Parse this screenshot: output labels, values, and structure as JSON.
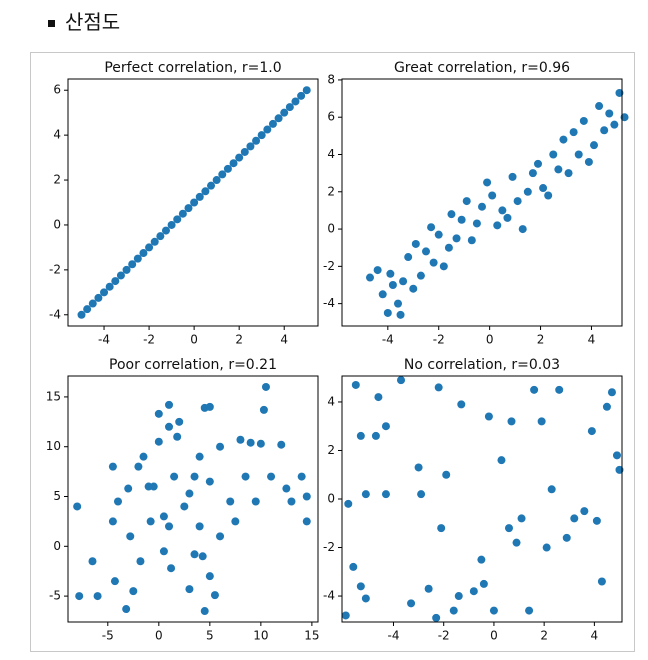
{
  "heading": "산점도",
  "chart_data": [
    {
      "type": "scatter",
      "title": "Perfect correlation, r=1.0",
      "color": "#1f77b4",
      "x": [
        -5,
        -4.75,
        -4.5,
        -4.25,
        -4,
        -3.75,
        -3.5,
        -3.25,
        -3,
        -2.75,
        -2.5,
        -2.25,
        -2,
        -1.75,
        -1.5,
        -1.25,
        -1,
        -0.75,
        -0.5,
        -0.25,
        0,
        0.25,
        0.5,
        0.75,
        1,
        1.25,
        1.5,
        1.75,
        2,
        2.25,
        2.5,
        2.75,
        3,
        3.25,
        3.5,
        3.75,
        4,
        4.25,
        4.5,
        4.75,
        5
      ],
      "y": [
        -4,
        -3.75,
        -3.5,
        -3.25,
        -3,
        -2.75,
        -2.5,
        -2.25,
        -2,
        -1.75,
        -1.5,
        -1.25,
        -1,
        -0.75,
        -0.5,
        -0.25,
        0,
        0.25,
        0.5,
        0.75,
        1,
        1.25,
        1.5,
        1.75,
        2,
        2.25,
        2.5,
        2.75,
        3,
        3.25,
        3.5,
        3.75,
        4,
        4.25,
        4.5,
        4.75,
        5,
        5.25,
        5.5,
        5.75,
        6
      ],
      "xlim": [
        -5.6,
        5.5
      ],
      "ylim": [
        -4.5,
        6.5
      ],
      "xticks": [
        -4,
        -2,
        0,
        2,
        4
      ],
      "yticks": [
        -4,
        -2,
        0,
        2,
        4,
        6
      ]
    },
    {
      "type": "scatter",
      "title": "Great correlation, r=0.96",
      "color": "#1f77b4",
      "x": [
        -4.7,
        -4.4,
        -4.2,
        -4.0,
        -3.9,
        -3.8,
        -3.6,
        -3.5,
        -3.4,
        -3.2,
        -3.0,
        -2.9,
        -2.7,
        -2.5,
        -2.3,
        -2.2,
        -2.0,
        -1.8,
        -1.6,
        -1.5,
        -1.3,
        -1.1,
        -0.9,
        -0.7,
        -0.5,
        -0.3,
        -0.1,
        0.1,
        0.3,
        0.5,
        0.7,
        0.9,
        1.1,
        1.3,
        1.5,
        1.7,
        1.9,
        2.1,
        2.3,
        2.5,
        2.7,
        2.9,
        3.1,
        3.3,
        3.5,
        3.7,
        3.9,
        4.1,
        4.3,
        4.5,
        4.7,
        4.9,
        5.1,
        5.3
      ],
      "y": [
        -2.6,
        -2.2,
        -3.5,
        -4.5,
        -2.4,
        -3.0,
        -4.0,
        -4.6,
        -2.8,
        -1.5,
        -3.2,
        -0.8,
        -2.5,
        -1.2,
        0.1,
        -1.8,
        -0.3,
        -2.0,
        -1.0,
        0.8,
        -0.5,
        0.5,
        1.5,
        -0.6,
        0.3,
        1.2,
        2.5,
        1.8,
        0.2,
        1.0,
        0.6,
        2.8,
        1.5,
        0.0,
        2.0,
        3.0,
        3.5,
        2.2,
        1.8,
        4.0,
        3.2,
        4.8,
        3.0,
        5.2,
        4.0,
        5.8,
        3.6,
        4.5,
        6.6,
        5.3,
        6.2,
        5.6,
        7.3,
        6.0
      ],
      "xlim": [
        -5.8,
        5.2
      ],
      "ylim": [
        -5.2,
        8.05
      ],
      "xticks": [
        -4,
        -2,
        0,
        2,
        4
      ],
      "yticks": [
        -4,
        -2,
        0,
        2,
        4,
        6,
        8
      ]
    },
    {
      "type": "scatter",
      "title": "Poor correlation, r=0.21",
      "color": "#1f77b4",
      "x": [
        -8,
        -7.8,
        -6.5,
        -6,
        -4.5,
        -4.3,
        -4,
        -4.5,
        -3.2,
        -3,
        -2.8,
        -2.5,
        -2,
        -1.8,
        -1.5,
        -1,
        -0.8,
        -0.5,
        0,
        0,
        0.5,
        0.5,
        1,
        1,
        1,
        1.2,
        1.5,
        1.8,
        2,
        2.5,
        3,
        3,
        3.5,
        3.5,
        4,
        4,
        4.3,
        4.5,
        4.5,
        5,
        5,
        5,
        5.5,
        6,
        6,
        7,
        7.5,
        8,
        8.5,
        9,
        9.5,
        10,
        10.3,
        10.5,
        11,
        12,
        12.5,
        13,
        14,
        14.5,
        14.5
      ],
      "y": [
        4,
        -5,
        -1.5,
        -5,
        8,
        -3.5,
        4.5,
        2.5,
        -6.3,
        5.8,
        1,
        -4.5,
        8,
        -1.5,
        9,
        6,
        2.5,
        6,
        13.3,
        10.5,
        3,
        -0.5,
        14.2,
        12,
        2,
        -2.2,
        7,
        11,
        12.5,
        4,
        5.3,
        -4.3,
        7,
        -0.8,
        9,
        2,
        -1,
        13.9,
        -6.5,
        14,
        6.5,
        -3,
        -4.9,
        10,
        1,
        4.5,
        2.5,
        10.7,
        7,
        10.4,
        4.5,
        10.3,
        13.7,
        16,
        7,
        10.2,
        5.8,
        4.5,
        7,
        2.5,
        5
      ],
      "xlim": [
        -8.9,
        15.6
      ],
      "ylim": [
        -7.6,
        17.1
      ],
      "xticks": [
        -5,
        0,
        5,
        10,
        15
      ],
      "yticks": [
        -5,
        0,
        5,
        10,
        15
      ]
    },
    {
      "type": "scatter",
      "title": "No correlation, r=0.03",
      "color": "#1f77b4",
      "x": [
        -5.9,
        -5.8,
        -5.5,
        -5.6,
        -5.3,
        -5.3,
        -5.1,
        -5.1,
        -4.6,
        -4.7,
        -4.3,
        -4.3,
        -3.7,
        -3.3,
        -3.0,
        -2.9,
        -2.6,
        -2.3,
        -2.2,
        -2.1,
        -1.9,
        -1.6,
        -1.4,
        -1.3,
        -0.8,
        -0.5,
        -0.4,
        -0.2,
        0.0,
        0.3,
        0.6,
        0.7,
        0.9,
        1.1,
        1.4,
        1.6,
        1.9,
        2.1,
        2.3,
        2.6,
        2.9,
        3.2,
        3.6,
        3.9,
        4.1,
        4.3,
        4.5,
        4.7,
        4.9,
        5.0
      ],
      "y": [
        -4.8,
        -0.2,
        4.7,
        -2.8,
        2.6,
        -3.6,
        0.2,
        -4.1,
        4.2,
        2.6,
        0.2,
        3.0,
        4.9,
        -4.3,
        1.3,
        0.2,
        -3.7,
        -4.9,
        4.6,
        -1.2,
        1.0,
        -4.6,
        -4.0,
        3.9,
        -3.8,
        -2.5,
        -3.5,
        3.4,
        -4.6,
        1.6,
        -1.2,
        3.2,
        -1.8,
        -0.8,
        -4.6,
        4.5,
        3.2,
        -2.0,
        0.4,
        4.5,
        -1.6,
        -0.8,
        -0.5,
        2.8,
        -0.9,
        -3.4,
        3.8,
        4.4,
        1.8,
        1.2
      ],
      "xlim": [
        -6.05,
        5.1
      ],
      "ylim": [
        -5.07,
        5.07
      ],
      "xticks": [
        -4,
        -2,
        0,
        2,
        4
      ],
      "yticks": [
        -4,
        -2,
        0,
        2,
        4
      ]
    }
  ]
}
